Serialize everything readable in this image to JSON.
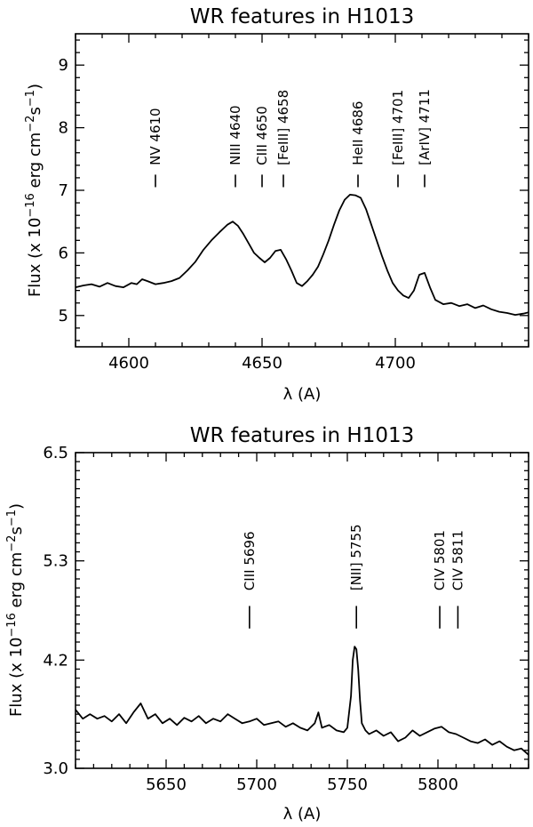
{
  "chart_data": [
    {
      "type": "line",
      "title": "WR features in H1013",
      "xlabel": "λ (A)",
      "ylabel": "Flux (x 10^-16 erg cm^-2 s^-1)",
      "ylabel_parts": {
        "a": "Flux (x 10",
        "exp1": "−16",
        "b": " erg cm",
        "exp2": "−2",
        "c": "s",
        "exp3": "−1",
        "d": ")"
      },
      "xlim": [
        4580,
        4750
      ],
      "ylim": [
        4.5,
        9.5
      ],
      "xticks": [
        4600,
        4650,
        4700
      ],
      "yticks": [
        5,
        6,
        7,
        8,
        9
      ],
      "xminor_step": 10,
      "yminor_step": 0.2,
      "lines": [
        {
          "label": "NV 4610",
          "x": 4610
        },
        {
          "label": "NIII 4640",
          "x": 4640
        },
        {
          "label": "CIII 4650",
          "x": 4650
        },
        {
          "label": "[FeIII] 4658",
          "x": 4658
        },
        {
          "label": "HeII 4686",
          "x": 4686
        },
        {
          "label": "[FeIII] 4701",
          "x": 4701
        },
        {
          "label": "[ArIV] 4711",
          "x": 4711
        }
      ],
      "marker_y": [
        7.05,
        7.25
      ],
      "label_base_y": 7.4,
      "series": [
        {
          "x": [
            4580,
            4583,
            4586,
            4589,
            4592,
            4595,
            4598,
            4601,
            4603,
            4605,
            4607,
            4610,
            4613,
            4616,
            4619,
            4622,
            4625,
            4628,
            4631,
            4634,
            4637,
            4639,
            4641,
            4643,
            4645,
            4647,
            4649,
            4651,
            4653,
            4655,
            4657,
            4659,
            4661,
            4663,
            4665,
            4667,
            4669,
            4671,
            4673,
            4675,
            4677,
            4679,
            4681,
            4683,
            4685,
            4687,
            4689,
            4691,
            4693,
            4695,
            4697,
            4699,
            4701,
            4703,
            4705,
            4707,
            4709,
            4711,
            4713,
            4715,
            4718,
            4721,
            4724,
            4727,
            4730,
            4733,
            4736,
            4739,
            4742,
            4745,
            4748,
            4750
          ],
          "y": [
            5.45,
            5.48,
            5.5,
            5.46,
            5.52,
            5.47,
            5.45,
            5.52,
            5.5,
            5.58,
            5.55,
            5.5,
            5.52,
            5.55,
            5.6,
            5.72,
            5.86,
            6.05,
            6.2,
            6.33,
            6.45,
            6.5,
            6.43,
            6.3,
            6.15,
            6.0,
            5.92,
            5.85,
            5.92,
            6.03,
            6.05,
            5.9,
            5.72,
            5.52,
            5.47,
            5.55,
            5.65,
            5.78,
            5.98,
            6.2,
            6.45,
            6.68,
            6.85,
            6.93,
            6.92,
            6.88,
            6.7,
            6.45,
            6.2,
            5.95,
            5.72,
            5.52,
            5.4,
            5.32,
            5.28,
            5.4,
            5.65,
            5.68,
            5.45,
            5.25,
            5.18,
            5.2,
            5.15,
            5.18,
            5.12,
            5.16,
            5.1,
            5.06,
            5.04,
            5.01,
            5.03,
            5.05
          ]
        }
      ]
    },
    {
      "type": "line",
      "title": "WR features in H1013",
      "xlabel": "λ (A)",
      "ylabel": "Flux (x 10^-16 erg cm^-2 s^-1)",
      "ylabel_parts": {
        "a": "Flux (x 10",
        "exp1": "−16",
        "b": " erg cm",
        "exp2": "−2",
        "c": "s",
        "exp3": "−1",
        "d": ")"
      },
      "xlim": [
        5600,
        5850
      ],
      "ylim": [
        3.0,
        6.5
      ],
      "xticks": [
        5650,
        5700,
        5750,
        5800
      ],
      "yticks": [
        3.0,
        4.2,
        5.3,
        6.5
      ],
      "xminor_step": 10,
      "yminor_step": 0.1,
      "lines": [
        {
          "label": "CIII 5696",
          "x": 5696
        },
        {
          "label": "[NII] 5755",
          "x": 5755
        },
        {
          "label": "CIV 5801",
          "x": 5801
        },
        {
          "label": "CIV 5811",
          "x": 5811
        }
      ],
      "marker_y": [
        4.55,
        4.8
      ],
      "label_base_y": 4.97,
      "series": [
        {
          "x": [
            5600,
            5604,
            5608,
            5612,
            5616,
            5620,
            5624,
            5628,
            5632,
            5636,
            5640,
            5644,
            5648,
            5652,
            5656,
            5660,
            5664,
            5668,
            5672,
            5676,
            5680,
            5684,
            5688,
            5692,
            5696,
            5700,
            5704,
            5708,
            5712,
            5716,
            5720,
            5724,
            5728,
            5732,
            5734,
            5736,
            5740,
            5744,
            5748,
            5750,
            5752,
            5753,
            5754,
            5755,
            5756,
            5757,
            5758,
            5760,
            5762,
            5766,
            5770,
            5774,
            5778,
            5782,
            5786,
            5790,
            5794,
            5798,
            5802,
            5806,
            5810,
            5814,
            5818,
            5822,
            5826,
            5830,
            5834,
            5838,
            5842,
            5846,
            5850
          ],
          "y": [
            3.65,
            3.55,
            3.6,
            3.55,
            3.58,
            3.52,
            3.6,
            3.5,
            3.62,
            3.72,
            3.55,
            3.6,
            3.5,
            3.55,
            3.48,
            3.56,
            3.52,
            3.58,
            3.5,
            3.55,
            3.52,
            3.6,
            3.55,
            3.5,
            3.52,
            3.55,
            3.48,
            3.5,
            3.52,
            3.46,
            3.5,
            3.45,
            3.42,
            3.5,
            3.62,
            3.45,
            3.48,
            3.42,
            3.4,
            3.45,
            3.8,
            4.2,
            4.35,
            4.32,
            4.1,
            3.75,
            3.5,
            3.42,
            3.38,
            3.42,
            3.36,
            3.4,
            3.3,
            3.34,
            3.42,
            3.36,
            3.4,
            3.44,
            3.46,
            3.4,
            3.38,
            3.34,
            3.3,
            3.28,
            3.32,
            3.26,
            3.3,
            3.24,
            3.2,
            3.22,
            3.15
          ]
        }
      ]
    }
  ]
}
